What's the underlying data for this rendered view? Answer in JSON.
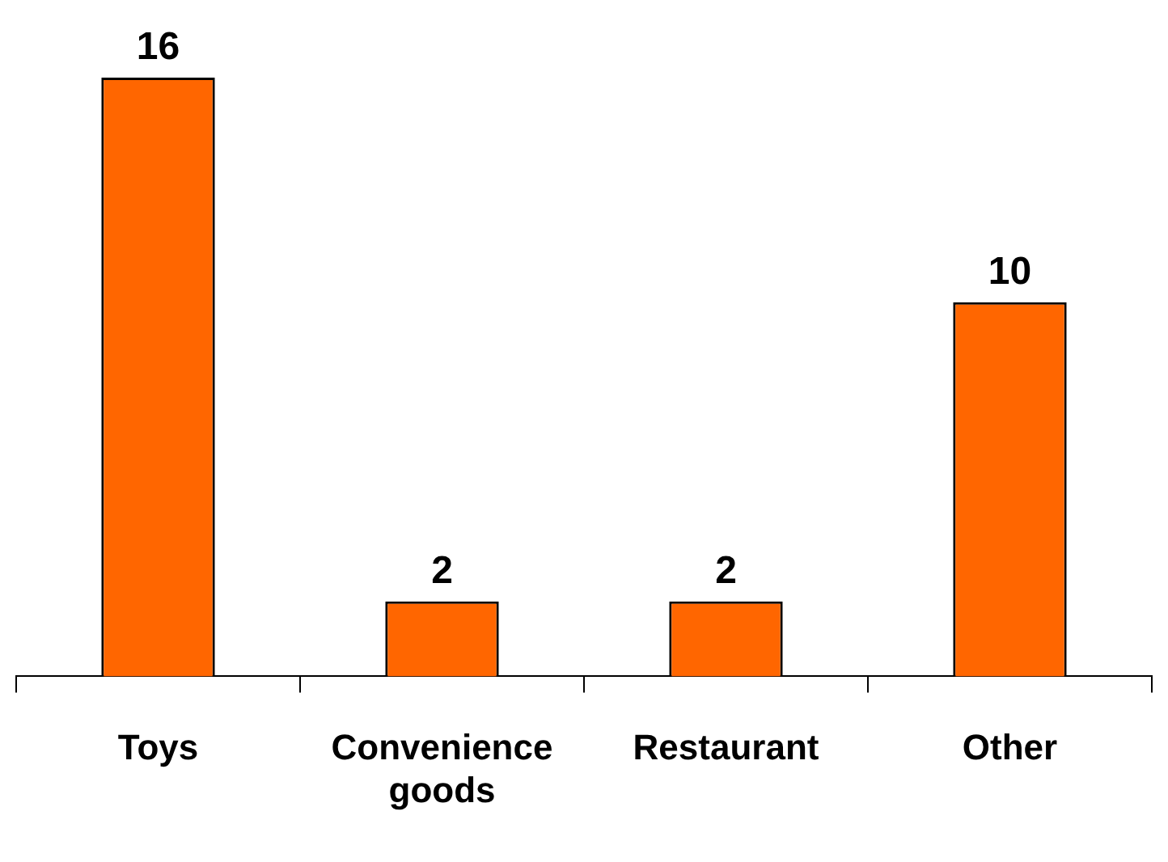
{
  "chart_data": {
    "type": "bar",
    "categories": [
      "Toys",
      "Convenience goods",
      "Restaurant",
      "Other"
    ],
    "values": [
      16,
      2,
      2,
      10
    ],
    "color": "#ff6600",
    "data_labels": true,
    "grid": false,
    "legend": false
  }
}
